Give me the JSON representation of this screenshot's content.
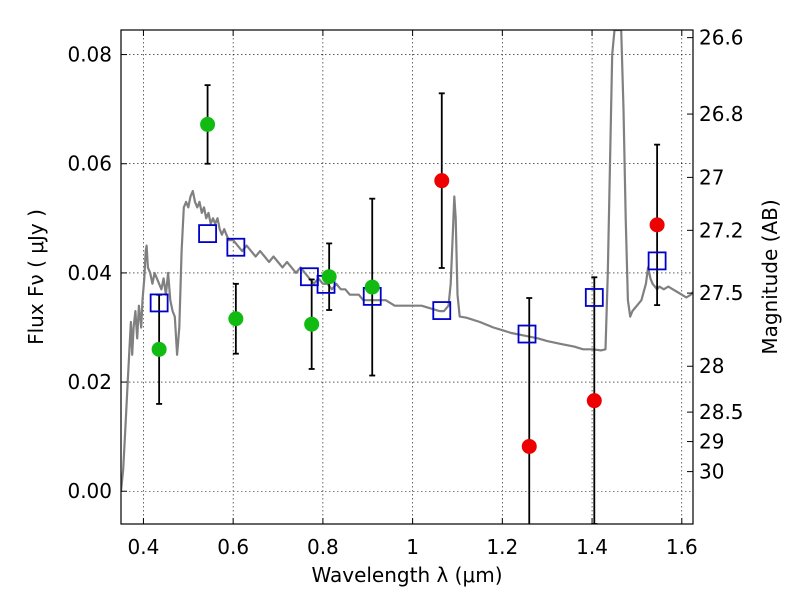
{
  "chart_data": {
    "type": "scatter",
    "title": "",
    "xlabel": "Wavelength  λ (μm)",
    "ylabel": "Flux  Fν  ( μJy )",
    "ylabel_right": "Magnitude (AB)",
    "xlim": [
      0.35,
      1.625
    ],
    "ylim": [
      -0.006,
      0.0845
    ],
    "grid": true,
    "x_ticks": [
      {
        "value": 0.4,
        "label": "0.4"
      },
      {
        "value": 0.6,
        "label": "0.6"
      },
      {
        "value": 0.8,
        "label": "0.8"
      },
      {
        "value": 1.0,
        "label": "1"
      },
      {
        "value": 1.2,
        "label": "1.2"
      },
      {
        "value": 1.4,
        "label": "1.4"
      },
      {
        "value": 1.6,
        "label": "1.6"
      }
    ],
    "y_ticks": [
      {
        "value": 0.0,
        "label": "0.00"
      },
      {
        "value": 0.02,
        "label": "0.02"
      },
      {
        "value": 0.04,
        "label": "0.04"
      },
      {
        "value": 0.06,
        "label": "0.06"
      },
      {
        "value": 0.08,
        "label": "0.08"
      }
    ],
    "magnitude_ticks": [
      {
        "flux": 0.0831,
        "label": "26.6"
      },
      {
        "flux": 0.0691,
        "label": "26.8"
      },
      {
        "flux": 0.0575,
        "label": "27"
      },
      {
        "flux": 0.0478,
        "label": "27.2"
      },
      {
        "flux": 0.0363,
        "label": "27.5"
      },
      {
        "flux": 0.0229,
        "label": "28"
      },
      {
        "flux": 0.0145,
        "label": "28.5"
      },
      {
        "flux": 0.0091,
        "label": "29"
      },
      {
        "flux": 0.0036,
        "label": "30"
      }
    ],
    "series": [
      {
        "marker": "open-square",
        "color": "#0000cc",
        "points": [
          {
            "x": 0.435,
            "y": 0.0345
          },
          {
            "x": 0.543,
            "y": 0.0472
          },
          {
            "x": 0.606,
            "y": 0.0447
          },
          {
            "x": 0.77,
            "y": 0.0393
          },
          {
            "x": 0.807,
            "y": 0.0379
          },
          {
            "x": 0.91,
            "y": 0.0357
          },
          {
            "x": 1.065,
            "y": 0.0331
          },
          {
            "x": 1.255,
            "y": 0.0288
          },
          {
            "x": 1.405,
            "y": 0.0355
          },
          {
            "x": 1.545,
            "y": 0.0422
          }
        ]
      },
      {
        "marker": "filled-circle",
        "color": "#11bb11",
        "points": [
          {
            "x": 0.435,
            "y": 0.026,
            "err": 0.01
          },
          {
            "x": 0.543,
            "y": 0.0672,
            "err": 0.0072
          },
          {
            "x": 0.606,
            "y": 0.0316,
            "err": 0.0064
          },
          {
            "x": 0.775,
            "y": 0.0306,
            "err": 0.0082
          },
          {
            "x": 0.814,
            "y": 0.0393,
            "err": 0.0061
          },
          {
            "x": 0.91,
            "y": 0.0374,
            "err": 0.0162
          }
        ]
      },
      {
        "marker": "filled-circle",
        "color": "#ee0000",
        "points": [
          {
            "x": 1.065,
            "y": 0.0569,
            "err": 0.016
          },
          {
            "x": 1.26,
            "y": 0.0082,
            "err": 0.0272
          },
          {
            "x": 1.405,
            "y": 0.0166,
            "err": 0.0226
          },
          {
            "x": 1.545,
            "y": 0.0488,
            "err": 0.0147
          }
        ]
      }
    ],
    "model_spectrum": {
      "color": "#808080",
      "points": [
        [
          0.35,
          0.0
        ],
        [
          0.355,
          0.004
        ],
        [
          0.36,
          0.012
        ],
        [
          0.365,
          0.02
        ],
        [
          0.37,
          0.028
        ],
        [
          0.372,
          0.031
        ],
        [
          0.375,
          0.025
        ],
        [
          0.378,
          0.03
        ],
        [
          0.382,
          0.033
        ],
        [
          0.386,
          0.028
        ],
        [
          0.39,
          0.034
        ],
        [
          0.395,
          0.03
        ],
        [
          0.398,
          0.035
        ],
        [
          0.402,
          0.039
        ],
        [
          0.405,
          0.044
        ],
        [
          0.407,
          0.045
        ],
        [
          0.41,
          0.041
        ],
        [
          0.415,
          0.04
        ],
        [
          0.42,
          0.038
        ],
        [
          0.425,
          0.04
        ],
        [
          0.43,
          0.039
        ],
        [
          0.435,
          0.038
        ],
        [
          0.44,
          0.037
        ],
        [
          0.445,
          0.039
        ],
        [
          0.45,
          0.036
        ],
        [
          0.455,
          0.04
        ],
        [
          0.46,
          0.035
        ],
        [
          0.465,
          0.033
        ],
        [
          0.47,
          0.032
        ],
        [
          0.475,
          0.025
        ],
        [
          0.48,
          0.03
        ],
        [
          0.485,
          0.044
        ],
        [
          0.49,
          0.052
        ],
        [
          0.495,
          0.053
        ],
        [
          0.5,
          0.052
        ],
        [
          0.505,
          0.054
        ],
        [
          0.51,
          0.055
        ],
        [
          0.515,
          0.053
        ],
        [
          0.52,
          0.052
        ],
        [
          0.525,
          0.053
        ],
        [
          0.53,
          0.051
        ],
        [
          0.535,
          0.052
        ],
        [
          0.54,
          0.05
        ],
        [
          0.545,
          0.051
        ],
        [
          0.55,
          0.049
        ],
        [
          0.555,
          0.05
        ],
        [
          0.56,
          0.049
        ],
        [
          0.565,
          0.05
        ],
        [
          0.57,
          0.048
        ],
        [
          0.575,
          0.047
        ],
        [
          0.58,
          0.048
        ],
        [
          0.59,
          0.046
        ],
        [
          0.6,
          0.046
        ],
        [
          0.61,
          0.045
        ],
        [
          0.62,
          0.044
        ],
        [
          0.63,
          0.045
        ],
        [
          0.64,
          0.044
        ],
        [
          0.65,
          0.043
        ],
        [
          0.66,
          0.044
        ],
        [
          0.67,
          0.043
        ],
        [
          0.68,
          0.042
        ],
        [
          0.69,
          0.043
        ],
        [
          0.7,
          0.042
        ],
        [
          0.71,
          0.041
        ],
        [
          0.72,
          0.042
        ],
        [
          0.73,
          0.041
        ],
        [
          0.74,
          0.04
        ],
        [
          0.75,
          0.041
        ],
        [
          0.76,
          0.04
        ],
        [
          0.77,
          0.039
        ],
        [
          0.78,
          0.038
        ],
        [
          0.79,
          0.039
        ],
        [
          0.8,
          0.038
        ],
        [
          0.81,
          0.038
        ],
        [
          0.82,
          0.037
        ],
        [
          0.83,
          0.038
        ],
        [
          0.84,
          0.037
        ],
        [
          0.85,
          0.037
        ],
        [
          0.86,
          0.036
        ],
        [
          0.87,
          0.036
        ],
        [
          0.88,
          0.036
        ],
        [
          0.89,
          0.035
        ],
        [
          0.9,
          0.035
        ],
        [
          0.92,
          0.035
        ],
        [
          0.94,
          0.035
        ],
        [
          0.96,
          0.034
        ],
        [
          0.98,
          0.034
        ],
        [
          1.0,
          0.034
        ],
        [
          1.02,
          0.034
        ],
        [
          1.04,
          0.0335
        ],
        [
          1.06,
          0.033
        ],
        [
          1.07,
          0.033
        ],
        [
          1.08,
          0.034
        ],
        [
          1.085,
          0.038
        ],
        [
          1.09,
          0.048
        ],
        [
          1.093,
          0.054
        ],
        [
          1.096,
          0.05
        ],
        [
          1.1,
          0.036
        ],
        [
          1.105,
          0.032
        ],
        [
          1.12,
          0.0318
        ],
        [
          1.15,
          0.031
        ],
        [
          1.18,
          0.03
        ],
        [
          1.2,
          0.0295
        ],
        [
          1.22,
          0.029
        ],
        [
          1.25,
          0.0285
        ],
        [
          1.28,
          0.028
        ],
        [
          1.3,
          0.0275
        ],
        [
          1.33,
          0.027
        ],
        [
          1.36,
          0.0265
        ],
        [
          1.38,
          0.026
        ],
        [
          1.4,
          0.026
        ],
        [
          1.42,
          0.0258
        ],
        [
          1.43,
          0.026
        ],
        [
          1.435,
          0.04
        ],
        [
          1.44,
          0.06
        ],
        [
          1.445,
          0.08
        ],
        [
          1.45,
          0.0845
        ],
        [
          1.465,
          0.0845
        ],
        [
          1.47,
          0.07
        ],
        [
          1.475,
          0.05
        ],
        [
          1.48,
          0.035
        ],
        [
          1.485,
          0.032
        ],
        [
          1.49,
          0.033
        ],
        [
          1.5,
          0.034
        ],
        [
          1.51,
          0.035
        ],
        [
          1.52,
          0.038
        ],
        [
          1.525,
          0.041
        ],
        [
          1.53,
          0.039
        ],
        [
          1.535,
          0.038
        ],
        [
          1.545,
          0.037
        ],
        [
          1.55,
          0.0375
        ],
        [
          1.56,
          0.037
        ],
        [
          1.57,
          0.0375
        ],
        [
          1.58,
          0.037
        ],
        [
          1.59,
          0.0365
        ],
        [
          1.6,
          0.036
        ],
        [
          1.61,
          0.0355
        ],
        [
          1.62,
          0.036
        ],
        [
          1.625,
          0.0365
        ]
      ]
    }
  }
}
